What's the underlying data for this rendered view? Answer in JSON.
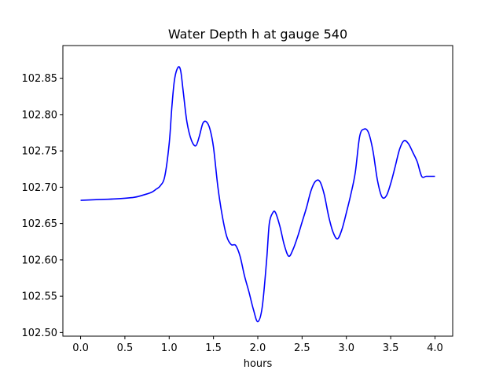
{
  "chart_data": {
    "type": "line",
    "title": "Water Depth h at gauge 540",
    "xlabel": "hours",
    "ylabel": "",
    "xlim": [
      -0.2,
      4.2
    ],
    "ylim": [
      102.495,
      102.895
    ],
    "grid": false,
    "x_ticks": [
      0.0,
      0.5,
      1.0,
      1.5,
      2.0,
      2.5,
      3.0,
      3.5,
      4.0
    ],
    "x_tick_labels": [
      "0.0",
      "0.5",
      "1.0",
      "1.5",
      "2.0",
      "2.5",
      "3.0",
      "3.5",
      "4.0"
    ],
    "y_ticks": [
      102.5,
      102.55,
      102.6,
      102.65,
      102.7,
      102.75,
      102.8,
      102.85
    ],
    "y_tick_labels": [
      "102.50",
      "102.55",
      "102.60",
      "102.65",
      "102.70",
      "102.75",
      "102.80",
      "102.85"
    ],
    "series": [
      {
        "color": "#0000ff",
        "x": [
          0.0,
          0.2,
          0.4,
          0.6,
          0.7,
          0.8,
          0.85,
          0.9,
          0.95,
          1.0,
          1.03,
          1.06,
          1.1,
          1.13,
          1.16,
          1.2,
          1.25,
          1.3,
          1.34,
          1.38,
          1.42,
          1.46,
          1.5,
          1.55,
          1.6,
          1.65,
          1.7,
          1.75,
          1.8,
          1.85,
          1.9,
          1.95,
          2.0,
          2.05,
          2.1,
          2.13,
          2.17,
          2.2,
          2.25,
          2.3,
          2.35,
          2.4,
          2.45,
          2.5,
          2.55,
          2.6,
          2.65,
          2.7,
          2.75,
          2.8,
          2.85,
          2.9,
          2.95,
          3.0,
          3.05,
          3.1,
          3.15,
          3.2,
          3.25,
          3.3,
          3.35,
          3.4,
          3.45,
          3.5,
          3.55,
          3.6,
          3.65,
          3.7,
          3.75,
          3.8,
          3.85,
          3.9,
          3.95,
          4.0
        ],
        "y": [
          102.682,
          102.683,
          102.684,
          102.686,
          102.689,
          102.693,
          102.697,
          102.702,
          102.715,
          102.76,
          102.81,
          102.848,
          102.865,
          102.86,
          102.83,
          102.79,
          102.765,
          102.757,
          102.77,
          102.788,
          102.79,
          102.78,
          102.755,
          102.7,
          102.66,
          102.632,
          102.621,
          102.62,
          102.605,
          102.578,
          102.556,
          102.532,
          102.515,
          102.535,
          102.6,
          102.65,
          102.665,
          102.665,
          102.646,
          102.62,
          102.605,
          102.615,
          102.632,
          102.652,
          102.672,
          102.695,
          102.708,
          102.708,
          102.69,
          102.66,
          102.638,
          102.629,
          102.642,
          102.665,
          102.69,
          102.72,
          102.77,
          102.78,
          102.775,
          102.75,
          102.71,
          102.687,
          102.688,
          102.705,
          102.728,
          102.752,
          102.764,
          102.76,
          102.748,
          102.735,
          102.715,
          102.715,
          102.715,
          102.715
        ]
      }
    ]
  }
}
